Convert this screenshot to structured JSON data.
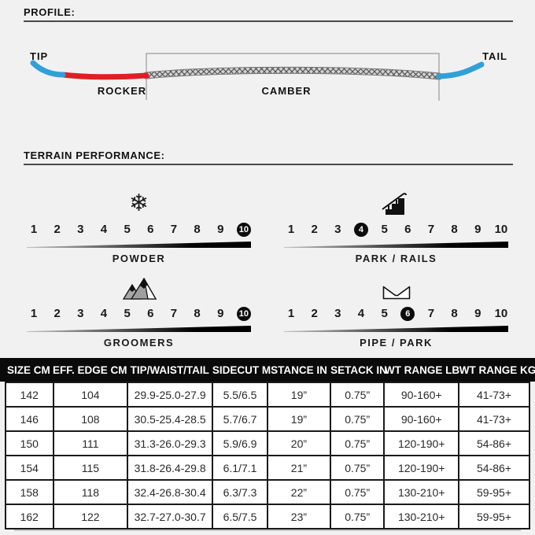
{
  "profile": {
    "title": "PROFILE:",
    "labels": {
      "tip": "TIP",
      "tail": "TAIL",
      "rocker": "ROCKER",
      "camber": "CAMBER"
    },
    "colors": {
      "tip_tail": "#31a0d8",
      "rocker": "#e01e25",
      "camber_band": "#d4d4d4",
      "camber_hatch": "#555555"
    }
  },
  "terrain": {
    "title": "TERRAIN PERFORMANCE:",
    "scale_min": 1,
    "scale_max": 10,
    "scales": [
      {
        "label": "POWDER",
        "rating": 10,
        "icon": "snowflake-icon"
      },
      {
        "label": "PARK / RAILS",
        "rating": 4,
        "icon": "stairs-rail-icon"
      },
      {
        "label": "GROOMERS",
        "rating": 10,
        "icon": "mountains-icon"
      },
      {
        "label": "PIPE / PARK",
        "rating": 6,
        "icon": "halfpipe-icon"
      }
    ]
  },
  "spec_table": {
    "headers": [
      "SIZE CM",
      "EFF. EDGE CM",
      "TIP/WAIST/TAIL",
      "SIDECUT M",
      "STANCE IN",
      "SETACK IN",
      "WT RANGE LB",
      "WT RANGE KG"
    ],
    "rows": [
      [
        "142",
        "104",
        "29.9-25.0-27.9",
        "5.5/6.5",
        "19”",
        "0.75”",
        "90-160+",
        "41-73+"
      ],
      [
        "146",
        "108",
        "30.5-25.4-28.5",
        "5.7/6.7",
        "19”",
        "0.75”",
        "90-160+",
        "41-73+"
      ],
      [
        "150",
        "111",
        "31.3-26.0-29.3",
        "5.9/6.9",
        "20”",
        "0.75”",
        "120-190+",
        "54-86+"
      ],
      [
        "154",
        "115",
        "31.8-26.4-29.8",
        "6.1/7.1",
        "21”",
        "0.75”",
        "120-190+",
        "54-86+"
      ],
      [
        "158",
        "118",
        "32.4-26.8-30.4",
        "6.3/7.3",
        "22”",
        "0.75”",
        "130-210+",
        "59-95+"
      ],
      [
        "162",
        "122",
        "32.7-27.0-30.7",
        "6.5/7.5",
        "23”",
        "0.75”",
        "130-210+",
        "59-95+"
      ]
    ]
  }
}
